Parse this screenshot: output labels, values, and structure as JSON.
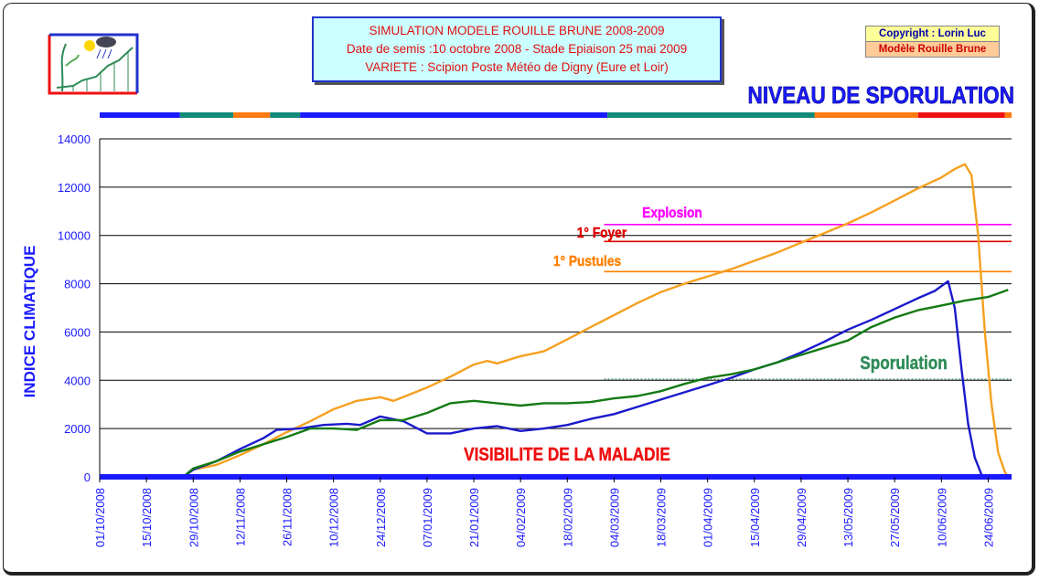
{
  "header": {
    "title_line1": "SIMULATION MODELE ROUILLE BRUNE 2008-2009",
    "title_line2": "Date de semis :10 octobre 2008 - Stade Epiaison 25 mai 2009",
    "title_line3": "VARIETE : Scipion   Poste Météo de Digny (Eure et Loir)",
    "copyright": "Copyright : Lorin Luc",
    "model": "Modèle Rouille Brune",
    "logo_icon": "weather-plant-growth-logo-icon"
  },
  "chart_data": {
    "type": "line",
    "title": "NIVEAU DE SPORULATION",
    "ylabel": "INDICE CLIMATIQUE",
    "xlabel": "",
    "ylim": [
      0,
      14000
    ],
    "yticks": [
      0,
      2000,
      4000,
      6000,
      8000,
      10000,
      12000,
      14000
    ],
    "xrange": [
      "2008-10-01",
      "2009-07-01"
    ],
    "xtick_labels": [
      "01/10/2008",
      "15/10/2008",
      "29/10/2008",
      "12/11/2008",
      "26/11/2008",
      "10/12/2008",
      "24/12/2008",
      "07/01/2009",
      "21/01/2009",
      "04/02/2009",
      "18/02/2009",
      "04/03/2009",
      "18/03/2009",
      "01/04/2009",
      "15/04/2009",
      "29/04/2009",
      "13/05/2009",
      "27/05/2009",
      "10/06/2009",
      "24/06/2009"
    ],
    "grid": "horizontal",
    "colors": {
      "title": "#1a1aff",
      "axis_text": "#1a1aff",
      "ylabel": "#1a1aff"
    },
    "stage_bar": [
      {
        "start": "2008-10-01",
        "end": "2008-10-25",
        "color": "#1a1aff"
      },
      {
        "start": "2008-10-25",
        "end": "2008-11-10",
        "color": "#128a7a"
      },
      {
        "start": "2008-11-10",
        "end": "2008-11-21",
        "color": "#ff7a10"
      },
      {
        "start": "2008-11-21",
        "end": "2008-11-30",
        "color": "#128a7a"
      },
      {
        "start": "2008-11-30",
        "end": "2009-03-02",
        "color": "#1a1aff"
      },
      {
        "start": "2009-03-02",
        "end": "2009-05-03",
        "color": "#128a7a"
      },
      {
        "start": "2009-05-03",
        "end": "2009-06-03",
        "color": "#ff7a10"
      },
      {
        "start": "2009-06-03",
        "end": "2009-06-29",
        "color": "#ee1111"
      },
      {
        "start": "2009-06-29",
        "end": "2009-07-01",
        "color": "#ff7a10"
      }
    ],
    "thresholds": [
      {
        "label": "Explosion",
        "value": 10450,
        "start": "2009-03-01",
        "color": "#ff00ff",
        "style": "solid"
      },
      {
        "label": "1° Foyer",
        "value": 9750,
        "start": "2009-03-01",
        "color": "#dd0000",
        "style": "solid"
      },
      {
        "label": "1° Pustules",
        "value": 8500,
        "start": "2009-03-01",
        "color": "#ff8000",
        "style": "solid"
      },
      {
        "label": "Sporulation",
        "value": 4050,
        "start": "2009-03-01",
        "color": "#2e8b57",
        "style": "dotted"
      },
      {
        "label": "VISIBILITE DE LA MALADIE",
        "value": 0,
        "start": "2008-10-01",
        "color": "#ee1111",
        "style": "none"
      }
    ],
    "series": [
      {
        "color": "#f5a020",
        "points": [
          [
            "2008-10-26",
            0
          ],
          [
            "2008-10-29",
            300
          ],
          [
            "2008-11-05",
            500
          ],
          [
            "2008-11-12",
            900
          ],
          [
            "2008-11-19",
            1350
          ],
          [
            "2008-11-26",
            1850
          ],
          [
            "2008-12-03",
            2300
          ],
          [
            "2008-12-10",
            2800
          ],
          [
            "2008-12-17",
            3150
          ],
          [
            "2008-12-24",
            3300
          ],
          [
            "2008-12-28",
            3150
          ],
          [
            "2009-01-07",
            3700
          ],
          [
            "2009-01-14",
            4150
          ],
          [
            "2009-01-21",
            4650
          ],
          [
            "2009-01-25",
            4800
          ],
          [
            "2009-01-28",
            4700
          ],
          [
            "2009-02-04",
            5000
          ],
          [
            "2009-02-11",
            5200
          ],
          [
            "2009-02-18",
            5700
          ],
          [
            "2009-02-25",
            6200
          ],
          [
            "2009-03-04",
            6700
          ],
          [
            "2009-03-11",
            7200
          ],
          [
            "2009-03-18",
            7650
          ],
          [
            "2009-03-25",
            8000
          ],
          [
            "2009-04-01",
            8300
          ],
          [
            "2009-04-08",
            8600
          ],
          [
            "2009-04-15",
            8950
          ],
          [
            "2009-04-22",
            9300
          ],
          [
            "2009-04-29",
            9700
          ],
          [
            "2009-05-06",
            10100
          ],
          [
            "2009-05-13",
            10500
          ],
          [
            "2009-05-20",
            10950
          ],
          [
            "2009-05-27",
            11450
          ],
          [
            "2009-06-03",
            11950
          ],
          [
            "2009-06-10",
            12400
          ],
          [
            "2009-06-14",
            12750
          ],
          [
            "2009-06-17",
            12950
          ],
          [
            "2009-06-19",
            12500
          ],
          [
            "2009-06-21",
            10000
          ],
          [
            "2009-06-23",
            6000
          ],
          [
            "2009-06-25",
            3000
          ],
          [
            "2009-06-27",
            1000
          ],
          [
            "2009-06-29",
            200
          ],
          [
            "2009-06-30",
            0
          ]
        ]
      },
      {
        "color": "#1a1acc",
        "points": [
          [
            "2008-10-26",
            0
          ],
          [
            "2008-10-29",
            300
          ],
          [
            "2008-11-05",
            650
          ],
          [
            "2008-11-12",
            1150
          ],
          [
            "2008-11-19",
            1600
          ],
          [
            "2008-11-23",
            1950
          ],
          [
            "2008-11-30",
            2000
          ],
          [
            "2008-12-07",
            2150
          ],
          [
            "2008-12-14",
            2200
          ],
          [
            "2008-12-18",
            2150
          ],
          [
            "2008-12-24",
            2500
          ],
          [
            "2008-12-31",
            2300
          ],
          [
            "2009-01-07",
            1800
          ],
          [
            "2009-01-14",
            1800
          ],
          [
            "2009-01-21",
            2000
          ],
          [
            "2009-01-28",
            2100
          ],
          [
            "2009-02-04",
            1900
          ],
          [
            "2009-02-11",
            2000
          ],
          [
            "2009-02-18",
            2150
          ],
          [
            "2009-02-25",
            2400
          ],
          [
            "2009-03-04",
            2600
          ],
          [
            "2009-03-11",
            2900
          ],
          [
            "2009-03-18",
            3200
          ],
          [
            "2009-03-25",
            3500
          ],
          [
            "2009-04-01",
            3800
          ],
          [
            "2009-04-08",
            4100
          ],
          [
            "2009-04-15",
            4450
          ],
          [
            "2009-04-22",
            4750
          ],
          [
            "2009-04-29",
            5150
          ],
          [
            "2009-05-06",
            5600
          ],
          [
            "2009-05-13",
            6100
          ],
          [
            "2009-05-20",
            6500
          ],
          [
            "2009-05-27",
            6950
          ],
          [
            "2009-06-03",
            7400
          ],
          [
            "2009-06-08",
            7700
          ],
          [
            "2009-06-12",
            8100
          ],
          [
            "2009-06-14",
            7000
          ],
          [
            "2009-06-16",
            4500
          ],
          [
            "2009-06-18",
            2200
          ],
          [
            "2009-06-20",
            800
          ],
          [
            "2009-06-22",
            100
          ],
          [
            "2009-06-23",
            0
          ]
        ]
      },
      {
        "color": "#137a13",
        "points": [
          [
            "2008-10-26",
            0
          ],
          [
            "2008-10-29",
            350
          ],
          [
            "2008-11-05",
            650
          ],
          [
            "2008-11-12",
            1050
          ],
          [
            "2008-11-19",
            1350
          ],
          [
            "2008-11-26",
            1650
          ],
          [
            "2008-12-03",
            2000
          ],
          [
            "2008-12-10",
            2000
          ],
          [
            "2008-12-17",
            1950
          ],
          [
            "2008-12-24",
            2350
          ],
          [
            "2008-12-31",
            2350
          ],
          [
            "2009-01-07",
            2650
          ],
          [
            "2009-01-14",
            3050
          ],
          [
            "2009-01-21",
            3150
          ],
          [
            "2009-01-28",
            3050
          ],
          [
            "2009-02-04",
            2950
          ],
          [
            "2009-02-11",
            3050
          ],
          [
            "2009-02-18",
            3050
          ],
          [
            "2009-02-25",
            3100
          ],
          [
            "2009-03-04",
            3250
          ],
          [
            "2009-03-11",
            3350
          ],
          [
            "2009-03-18",
            3550
          ],
          [
            "2009-03-25",
            3850
          ],
          [
            "2009-04-01",
            4100
          ],
          [
            "2009-04-08",
            4250
          ],
          [
            "2009-04-15",
            4450
          ],
          [
            "2009-04-22",
            4750
          ],
          [
            "2009-04-29",
            5050
          ],
          [
            "2009-05-06",
            5350
          ],
          [
            "2009-05-13",
            5650
          ],
          [
            "2009-05-20",
            6200
          ],
          [
            "2009-05-27",
            6600
          ],
          [
            "2009-06-03",
            6900
          ],
          [
            "2009-06-10",
            7100
          ],
          [
            "2009-06-17",
            7300
          ],
          [
            "2009-06-24",
            7450
          ],
          [
            "2009-06-30",
            7750
          ]
        ]
      }
    ]
  }
}
